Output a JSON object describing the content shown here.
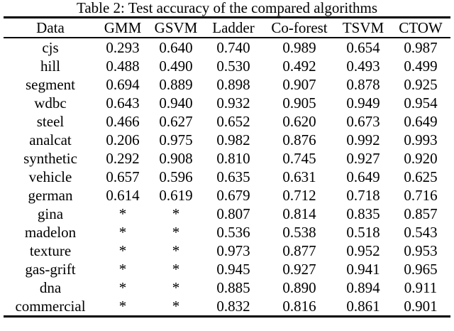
{
  "caption": "Table 2: Test accuracy of the compared algorithms",
  "table": {
    "columns": [
      "Data",
      "GMM",
      "GSVM",
      "Ladder",
      "Co-forest",
      "TSVM",
      "CTOW"
    ],
    "rows": [
      {
        "data": "cjs",
        "bold_label": false,
        "values": [
          "0.293",
          "0.640",
          "0.740",
          "0.989",
          "0.654",
          "0.987"
        ],
        "bold": [
          3
        ]
      },
      {
        "data": "hill",
        "bold_label": false,
        "values": [
          "0.488",
          "0.490",
          "0.530",
          "0.492",
          "0.493",
          "0.499"
        ],
        "bold": [
          2
        ]
      },
      {
        "data": "segment",
        "bold_label": false,
        "values": [
          "0.694",
          "0.889",
          "0.898",
          "0.907",
          "0.878",
          "0.925"
        ],
        "bold": [
          5
        ]
      },
      {
        "data": "wdbc",
        "bold_label": false,
        "values": [
          "0.643",
          "0.940",
          "0.932",
          "0.905",
          "0.949",
          "0.954"
        ],
        "bold": [
          5
        ]
      },
      {
        "data": "steel",
        "bold_label": false,
        "values": [
          "0.466",
          "0.627",
          "0.652",
          "0.620",
          "0.673",
          "0.649"
        ],
        "bold": [
          4
        ]
      },
      {
        "data": "analcat",
        "bold_label": false,
        "values": [
          "0.206",
          "0.975",
          "0.982",
          "0.876",
          "0.992",
          "0.993"
        ],
        "bold": [
          5
        ]
      },
      {
        "data": "synthetic",
        "bold_label": false,
        "values": [
          "0.292",
          "0.908",
          "0.810",
          "0.745",
          "0.927",
          "0.920"
        ],
        "bold": [
          4
        ]
      },
      {
        "data": "vehicle",
        "bold_label": false,
        "values": [
          "0.657",
          "0.596",
          "0.635",
          "0.631",
          "0.649",
          "0.625"
        ],
        "bold": [
          0
        ]
      },
      {
        "data": "german",
        "bold_label": false,
        "values": [
          "0.614",
          "0.619",
          "0.679",
          "0.712",
          "0.718",
          "0.716"
        ],
        "bold": [
          4
        ]
      },
      {
        "data": "gina",
        "bold_label": false,
        "values": [
          "*",
          "*",
          "0.807",
          "0.814",
          "0.835",
          "0.857"
        ],
        "bold": [
          5
        ]
      },
      {
        "data": "madelon",
        "bold_label": false,
        "values": [
          "*",
          "*",
          "0.536",
          "0.538",
          "0.518",
          "0.543"
        ],
        "bold": [
          5
        ]
      },
      {
        "data": "texture",
        "bold_label": false,
        "values": [
          "*",
          "*",
          "0.973",
          "0.877",
          "0.952",
          "0.953"
        ],
        "bold": [
          2
        ]
      },
      {
        "data": "gas-grift",
        "bold_label": false,
        "values": [
          "*",
          "*",
          "0.945",
          "0.927",
          "0.941",
          "0.965"
        ],
        "bold": [
          5
        ]
      },
      {
        "data": "dna",
        "bold_label": false,
        "values": [
          "*",
          "*",
          "0.885",
          "0.890",
          "0.894",
          "0.911"
        ],
        "bold": [
          5
        ]
      },
      {
        "data": "commercial",
        "bold_label": true,
        "values": [
          "*",
          "*",
          "0.832",
          "0.816",
          "0.861",
          "0.901"
        ],
        "bold": [
          5
        ]
      }
    ]
  }
}
